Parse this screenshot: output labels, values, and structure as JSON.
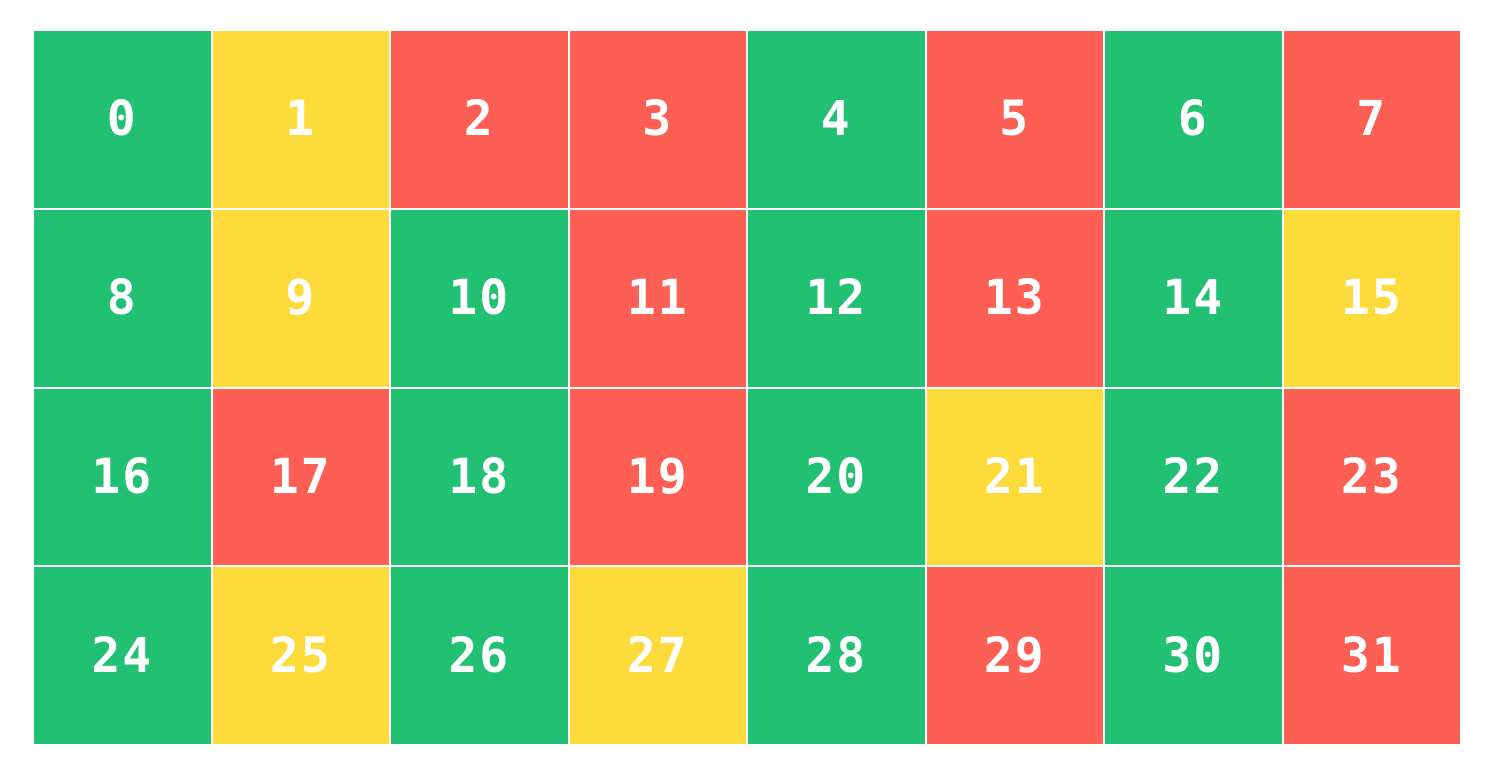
{
  "colors": {
    "green": "#22c073",
    "yellow": "#fcdb3a",
    "red": "#fe5f55",
    "text": "#ffffff",
    "background": "#ffffff"
  },
  "cells": [
    {
      "label": "0",
      "status": "green"
    },
    {
      "label": "1",
      "status": "yellow"
    },
    {
      "label": "2",
      "status": "red"
    },
    {
      "label": "3",
      "status": "red"
    },
    {
      "label": "4",
      "status": "green"
    },
    {
      "label": "5",
      "status": "red"
    },
    {
      "label": "6",
      "status": "green"
    },
    {
      "label": "7",
      "status": "red"
    },
    {
      "label": "8",
      "status": "green"
    },
    {
      "label": "9",
      "status": "yellow"
    },
    {
      "label": "10",
      "status": "green"
    },
    {
      "label": "11",
      "status": "red"
    },
    {
      "label": "12",
      "status": "green"
    },
    {
      "label": "13",
      "status": "red"
    },
    {
      "label": "14",
      "status": "green"
    },
    {
      "label": "15",
      "status": "yellow"
    },
    {
      "label": "16",
      "status": "green"
    },
    {
      "label": "17",
      "status": "red"
    },
    {
      "label": "18",
      "status": "green"
    },
    {
      "label": "19",
      "status": "red"
    },
    {
      "label": "20",
      "status": "green"
    },
    {
      "label": "21",
      "status": "yellow"
    },
    {
      "label": "22",
      "status": "green"
    },
    {
      "label": "23",
      "status": "red"
    },
    {
      "label": "24",
      "status": "green"
    },
    {
      "label": "25",
      "status": "yellow"
    },
    {
      "label": "26",
      "status": "green"
    },
    {
      "label": "27",
      "status": "yellow"
    },
    {
      "label": "28",
      "status": "green"
    },
    {
      "label": "29",
      "status": "red"
    },
    {
      "label": "30",
      "status": "green"
    },
    {
      "label": "31",
      "status": "red"
    }
  ]
}
